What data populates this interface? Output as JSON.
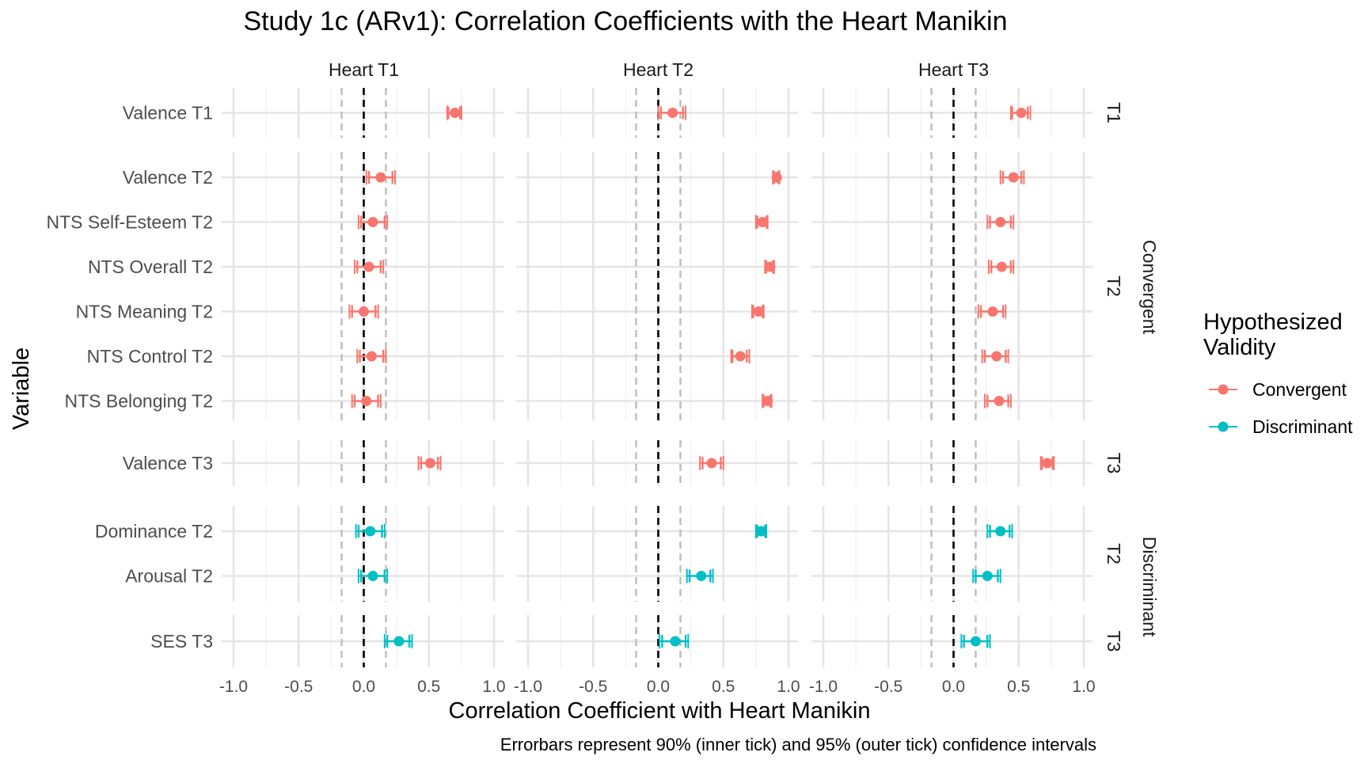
{
  "chart_data": {
    "type": "errorbar",
    "title": "Study 1c (ARv1): Correlation Coefficients with the Heart Manikin",
    "xlabel": "Correlation Coefficient with Heart Manikin",
    "ylabel": "Variable",
    "caption": "Errorbars represent 90% (inner tick) and 95% (outer tick) confidence intervals",
    "xlim": [
      -1.0,
      1.0
    ],
    "xticks": [
      "-1.0",
      "-0.5",
      "0.0",
      "0.5",
      "1.0"
    ],
    "reference_lines": {
      "zero": 0.0,
      "dashed_band": [
        -0.17,
        0.17
      ]
    },
    "grid": true,
    "facet_columns": [
      "Heart T1",
      "Heart T2",
      "Heart T3"
    ],
    "facet_rows": [
      {
        "label": "T1",
        "group": "Convergent",
        "variables": [
          "Valence T1"
        ]
      },
      {
        "label": "T2",
        "group": "Convergent",
        "variables": [
          "Valence T2",
          "NTS Self-Esteem T2",
          "NTS Overall T2",
          "NTS Meaning T2",
          "NTS Control T2",
          "NTS Belonging T2"
        ]
      },
      {
        "label": "T3",
        "group": "Convergent",
        "variables": [
          "Valence T3"
        ]
      },
      {
        "label": "T2",
        "group": "Discriminant",
        "variables": [
          "Dominance T2",
          "Arousal T2"
        ]
      },
      {
        "label": "T3",
        "group": "Discriminant",
        "variables": [
          "SES T3"
        ]
      }
    ],
    "group_labels": [
      "Convergent",
      "Discriminant"
    ],
    "legend": {
      "title": "Hypothesized Validity",
      "title_lines": [
        "Hypothesized",
        "Validity"
      ],
      "position": "right",
      "entries": [
        {
          "name": "Convergent",
          "color": "#F8766D"
        },
        {
          "name": "Discriminant",
          "color": "#00BFC4"
        }
      ]
    },
    "series": [
      {
        "variable": "Valence T1",
        "validity": "Convergent",
        "estimates": [
          {
            "col": 0,
            "r": 0.7,
            "ci90": [
              0.65,
              0.74
            ],
            "ci95": [
              0.64,
              0.75
            ]
          },
          {
            "col": 1,
            "r": 0.11,
            "ci90": [
              0.02,
              0.19
            ],
            "ci95": [
              0.0,
              0.21
            ]
          },
          {
            "col": 2,
            "r": 0.52,
            "ci90": [
              0.45,
              0.57
            ],
            "ci95": [
              0.44,
              0.59
            ]
          }
        ]
      },
      {
        "variable": "Valence T2",
        "validity": "Convergent",
        "estimates": [
          {
            "col": 0,
            "r": 0.13,
            "ci90": [
              0.04,
              0.22
            ],
            "ci95": [
              0.02,
              0.24
            ]
          },
          {
            "col": 1,
            "r": 0.91,
            "ci90": [
              0.89,
              0.92
            ],
            "ci95": [
              0.88,
              0.93
            ]
          },
          {
            "col": 2,
            "r": 0.46,
            "ci90": [
              0.38,
              0.52
            ],
            "ci95": [
              0.36,
              0.54
            ]
          }
        ]
      },
      {
        "variable": "NTS Self-Esteem T2",
        "validity": "Convergent",
        "estimates": [
          {
            "col": 0,
            "r": 0.07,
            "ci90": [
              -0.02,
              0.16
            ],
            "ci95": [
              -0.04,
              0.18
            ]
          },
          {
            "col": 1,
            "r": 0.8,
            "ci90": [
              0.76,
              0.83
            ],
            "ci95": [
              0.75,
              0.84
            ]
          },
          {
            "col": 2,
            "r": 0.36,
            "ci90": [
              0.28,
              0.44
            ],
            "ci95": [
              0.26,
              0.46
            ]
          }
        ]
      },
      {
        "variable": "NTS Overall T2",
        "validity": "Convergent",
        "estimates": [
          {
            "col": 0,
            "r": 0.04,
            "ci90": [
              -0.05,
              0.13
            ],
            "ci95": [
              -0.07,
              0.15
            ]
          },
          {
            "col": 1,
            "r": 0.86,
            "ci90": [
              0.83,
              0.88
            ],
            "ci95": [
              0.82,
              0.89
            ]
          },
          {
            "col": 2,
            "r": 0.37,
            "ci90": [
              0.29,
              0.44
            ],
            "ci95": [
              0.27,
              0.46
            ]
          }
        ]
      },
      {
        "variable": "NTS Meaning T2",
        "validity": "Convergent",
        "estimates": [
          {
            "col": 0,
            "r": 0.0,
            "ci90": [
              -0.09,
              0.09
            ],
            "ci95": [
              -0.11,
              0.11
            ]
          },
          {
            "col": 1,
            "r": 0.77,
            "ci90": [
              0.73,
              0.8
            ],
            "ci95": [
              0.72,
              0.81
            ]
          },
          {
            "col": 2,
            "r": 0.3,
            "ci90": [
              0.21,
              0.38
            ],
            "ci95": [
              0.19,
              0.4
            ]
          }
        ]
      },
      {
        "variable": "NTS Control T2",
        "validity": "Convergent",
        "estimates": [
          {
            "col": 0,
            "r": 0.06,
            "ci90": [
              -0.03,
              0.15
            ],
            "ci95": [
              -0.05,
              0.17
            ]
          },
          {
            "col": 1,
            "r": 0.63,
            "ci90": [
              0.57,
              0.68
            ],
            "ci95": [
              0.56,
              0.7
            ]
          },
          {
            "col": 2,
            "r": 0.33,
            "ci90": [
              0.24,
              0.4
            ],
            "ci95": [
              0.22,
              0.42
            ]
          }
        ]
      },
      {
        "variable": "NTS Belonging T2",
        "validity": "Convergent",
        "estimates": [
          {
            "col": 0,
            "r": 0.02,
            "ci90": [
              -0.07,
              0.11
            ],
            "ci95": [
              -0.09,
              0.13
            ]
          },
          {
            "col": 1,
            "r": 0.84,
            "ci90": [
              0.81,
              0.86
            ],
            "ci95": [
              0.8,
              0.87
            ]
          },
          {
            "col": 2,
            "r": 0.35,
            "ci90": [
              0.26,
              0.42
            ],
            "ci95": [
              0.24,
              0.44
            ]
          }
        ]
      },
      {
        "variable": "Valence T3",
        "validity": "Convergent",
        "estimates": [
          {
            "col": 0,
            "r": 0.51,
            "ci90": [
              0.44,
              0.57
            ],
            "ci95": [
              0.42,
              0.59
            ]
          },
          {
            "col": 1,
            "r": 0.41,
            "ci90": [
              0.34,
              0.48
            ],
            "ci95": [
              0.32,
              0.5
            ]
          },
          {
            "col": 2,
            "r": 0.72,
            "ci90": [
              0.68,
              0.76
            ],
            "ci95": [
              0.67,
              0.77
            ]
          }
        ]
      },
      {
        "variable": "Dominance T2",
        "validity": "Discriminant",
        "estimates": [
          {
            "col": 0,
            "r": 0.05,
            "ci90": [
              -0.04,
              0.14
            ],
            "ci95": [
              -0.06,
              0.16
            ]
          },
          {
            "col": 1,
            "r": 0.79,
            "ci90": [
              0.76,
              0.82
            ],
            "ci95": [
              0.75,
              0.83
            ]
          },
          {
            "col": 2,
            "r": 0.36,
            "ci90": [
              0.28,
              0.43
            ],
            "ci95": [
              0.26,
              0.45
            ]
          }
        ]
      },
      {
        "variable": "Arousal T2",
        "validity": "Discriminant",
        "estimates": [
          {
            "col": 0,
            "r": 0.07,
            "ci90": [
              -0.02,
              0.16
            ],
            "ci95": [
              -0.04,
              0.18
            ]
          },
          {
            "col": 1,
            "r": 0.33,
            "ci90": [
              0.24,
              0.4
            ],
            "ci95": [
              0.22,
              0.42
            ]
          },
          {
            "col": 2,
            "r": 0.26,
            "ci90": [
              0.17,
              0.34
            ],
            "ci95": [
              0.15,
              0.36
            ]
          }
        ]
      },
      {
        "variable": "SES T3",
        "validity": "Discriminant",
        "estimates": [
          {
            "col": 0,
            "r": 0.27,
            "ci90": [
              0.18,
              0.35
            ],
            "ci95": [
              0.16,
              0.37
            ]
          },
          {
            "col": 1,
            "r": 0.13,
            "ci90": [
              0.03,
              0.21
            ],
            "ci95": [
              0.01,
              0.23
            ]
          },
          {
            "col": 2,
            "r": 0.17,
            "ci90": [
              0.08,
              0.26
            ],
            "ci95": [
              0.06,
              0.28
            ]
          }
        ]
      }
    ]
  }
}
